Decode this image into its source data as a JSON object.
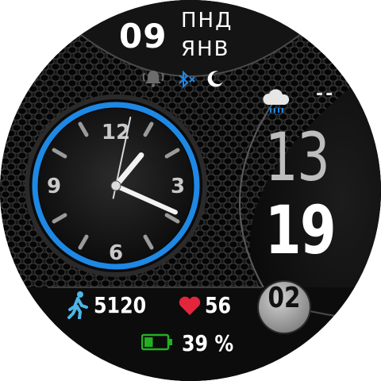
{
  "date": {
    "day": "09",
    "weekday": "ПНД",
    "month": "ЯНВ"
  },
  "status_icons": [
    "bell-alarm-icon",
    "bluetooth-off-icon",
    "moon-icon"
  ],
  "weather": {
    "icon": "cloud-rain-icon",
    "temperature": "--"
  },
  "digital_time": {
    "hour": "13",
    "minute": "19",
    "second": "02"
  },
  "analog_clock": {
    "numerals": [
      "12",
      "3",
      "6",
      "9"
    ],
    "hour_hand": 1.32,
    "minute_hand": 19,
    "second_hand": 2,
    "ring_color": "#1e88e5"
  },
  "stats": {
    "steps": "5120",
    "heart_rate": "56",
    "battery": "39 %",
    "battery_level": 0.39
  },
  "colors": {
    "steps_icon": "#4db6e6",
    "heart_icon": "#e3263c",
    "battery_icon": "#22b022",
    "status_icons": "#6c6c6c"
  }
}
